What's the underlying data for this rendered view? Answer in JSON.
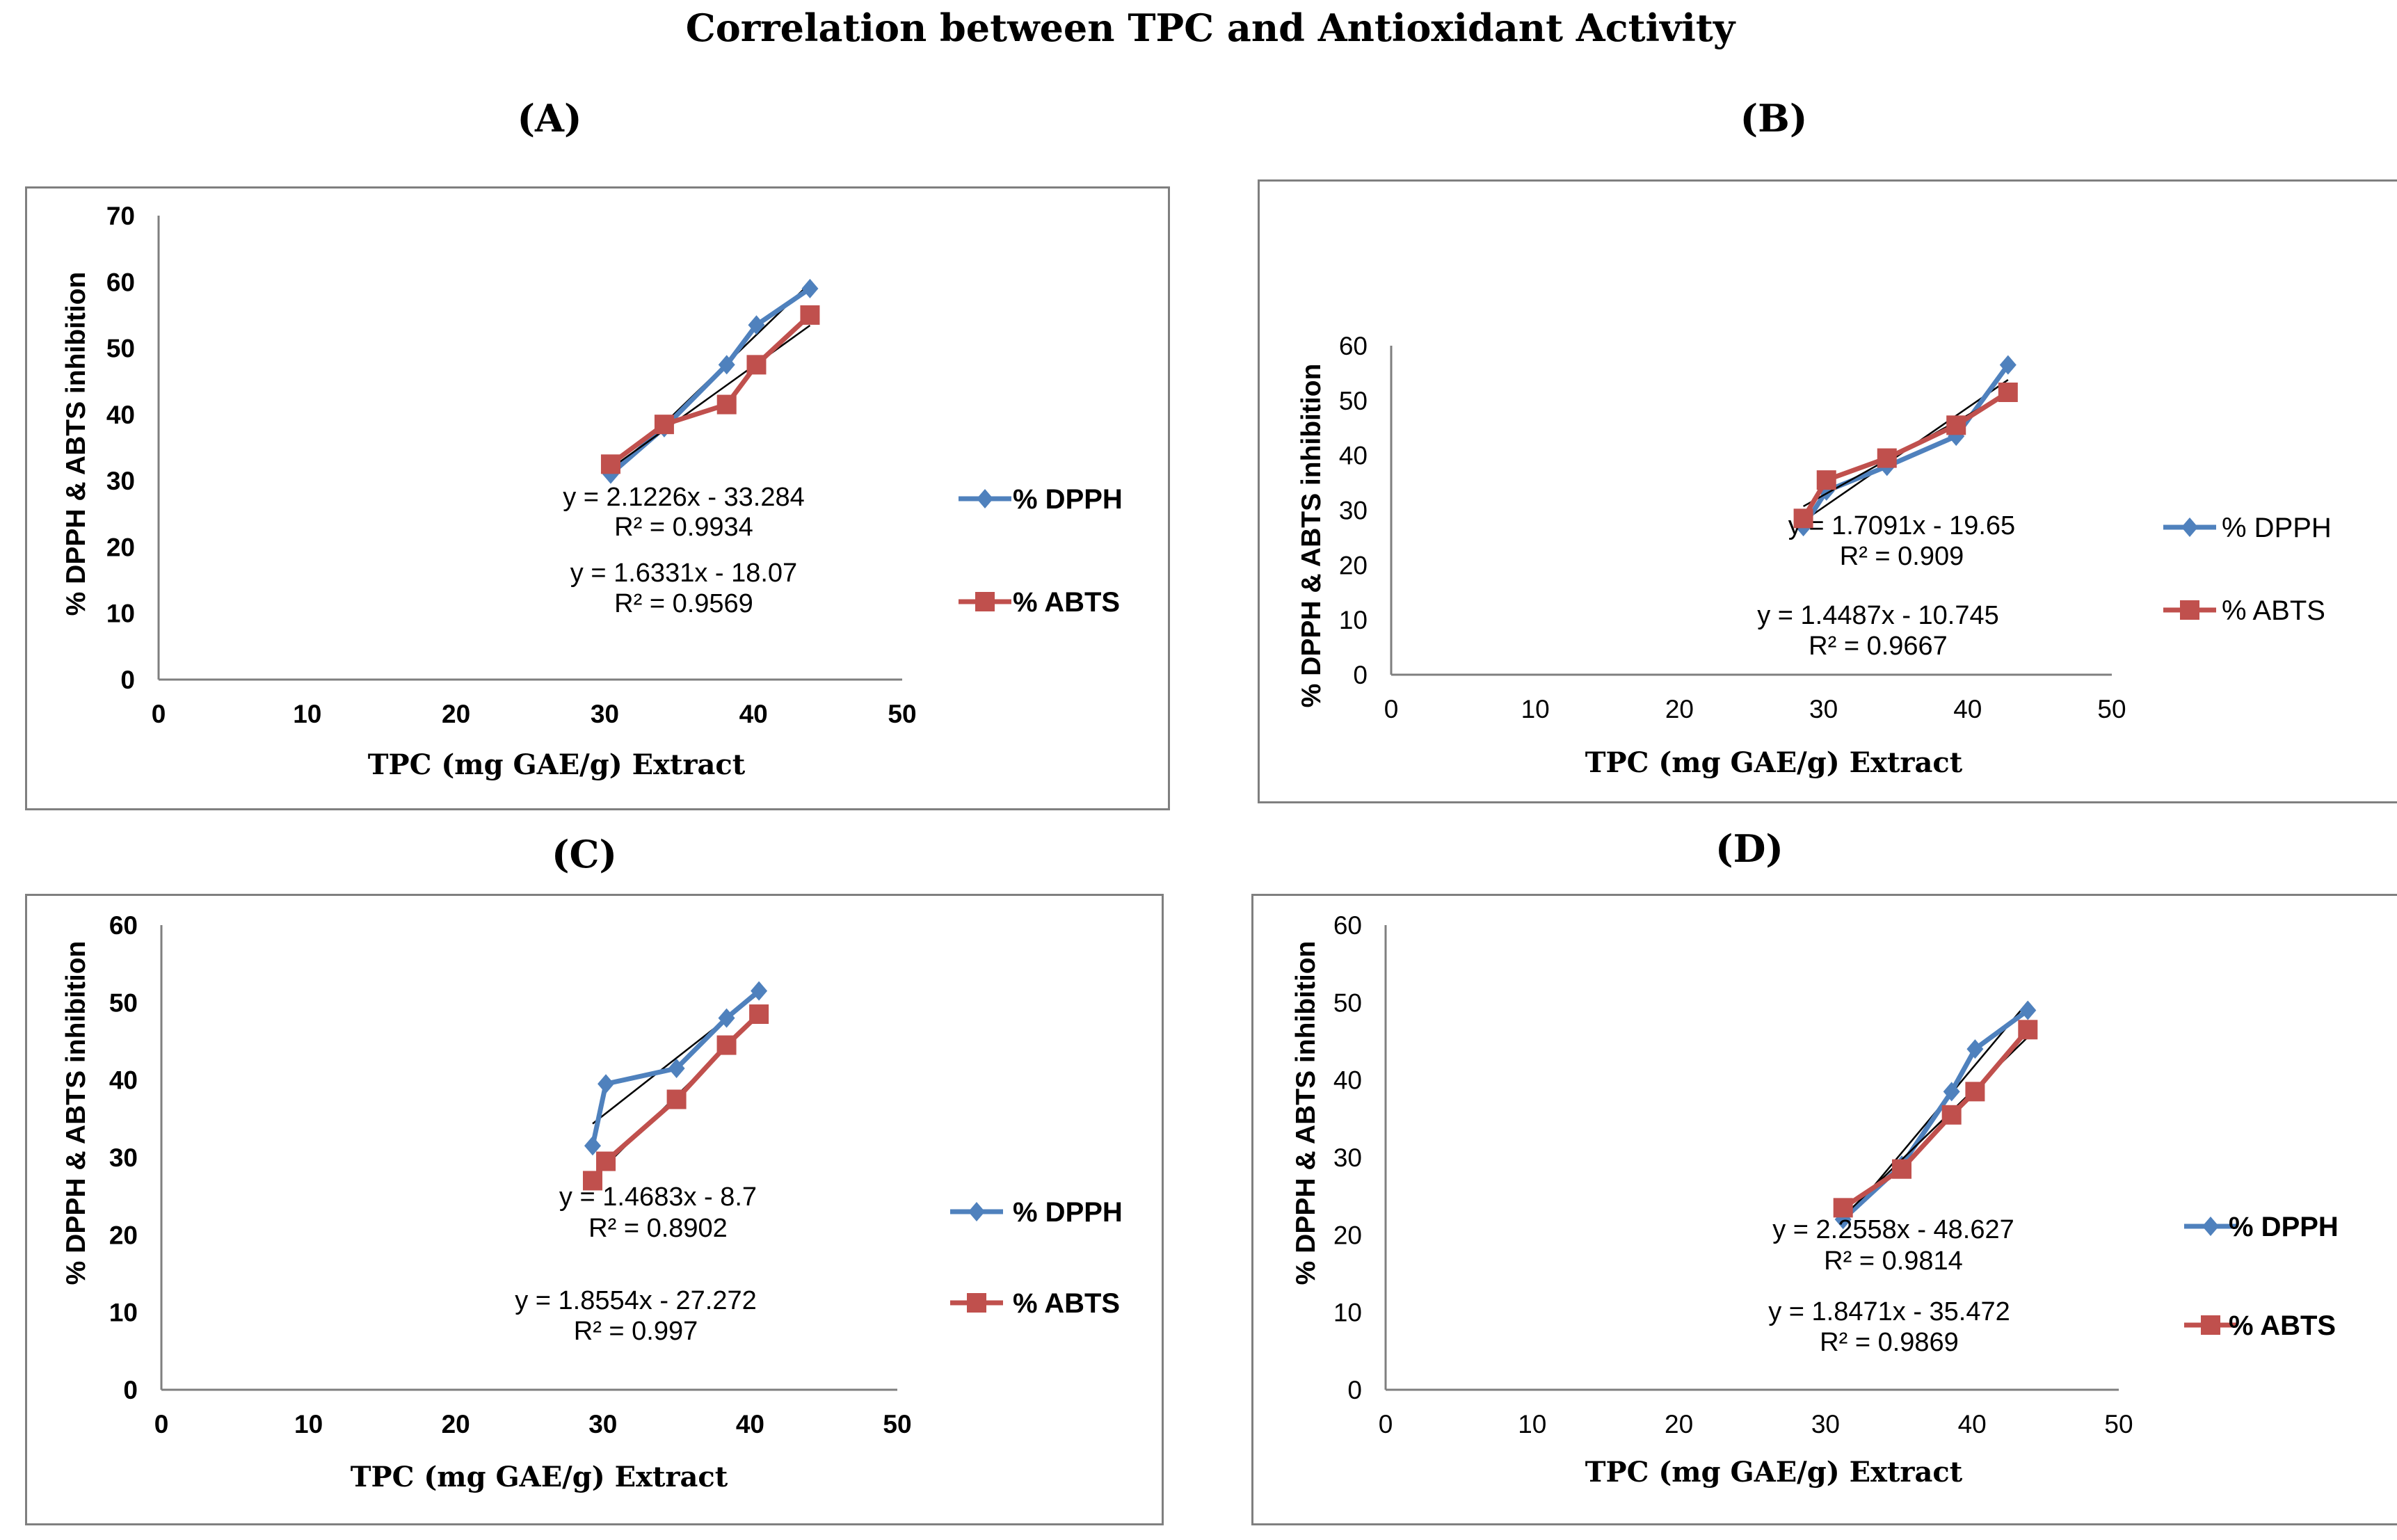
{
  "figure_title": "Correlation between TPC and Antioxidant Activity",
  "colors": {
    "dpph": "#4f81bd",
    "abts": "#c0504d",
    "trend": "#000000",
    "axis": "#7f7f7f"
  },
  "chart_data": [
    {
      "panel": "(A)",
      "type": "line",
      "xlabel": "TPC (mg GAE/g) Extract",
      "ylabel": "% DPPH & ABTS inhibition",
      "xlim": [
        0,
        50
      ],
      "ylim": [
        0,
        70
      ],
      "xticks": [
        "0",
        "10",
        "20",
        "30",
        "40",
        "50"
      ],
      "yticks": [
        "0",
        "10",
        "20",
        "30",
        "40",
        "50",
        "60",
        "70"
      ],
      "series": [
        {
          "name": "% DPPH",
          "x": [
            30.4,
            34.0,
            38.2,
            40.2,
            43.8
          ],
          "y": [
            31,
            38,
            47.5,
            53.5,
            59
          ],
          "trendline": {
            "equation": "y = 2.1226x - 33.284",
            "r2": "R² = 0.9934"
          }
        },
        {
          "name": "% ABTS",
          "x": [
            30.4,
            34.0,
            38.2,
            40.2,
            43.8
          ],
          "y": [
            32.5,
            38.5,
            41.5,
            47.5,
            55
          ],
          "trendline": {
            "equation": "y = 1.6331x - 18.07",
            "r2": "R² = 0.9569"
          }
        }
      ]
    },
    {
      "panel": "(B)",
      "type": "line",
      "xlabel": "TPC (mg GAE/g) Extract",
      "ylabel": "% DPPH & ABTS inhibition",
      "xlim": [
        0,
        50
      ],
      "ylim": [
        0,
        60
      ],
      "xticks": [
        "0",
        "10",
        "20",
        "30",
        "40",
        "50"
      ],
      "yticks": [
        "0",
        "10",
        "20",
        "30",
        "40",
        "50",
        "60"
      ],
      "series": [
        {
          "name": "% DPPH",
          "x": [
            28.6,
            30.2,
            34.4,
            39.2,
            42.8
          ],
          "y": [
            27,
            33.5,
            38,
            43.5,
            56.5
          ],
          "trendline": {
            "equation": "y = 1.7091x - 19.65",
            "r2": "R² = 0.909"
          }
        },
        {
          "name": "% ABTS",
          "x": [
            28.6,
            30.2,
            34.4,
            39.2,
            42.8
          ],
          "y": [
            28.5,
            35.5,
            39.5,
            45.5,
            51.5
          ],
          "trendline": {
            "equation": "y = 1.4487x - 10.745",
            "r2": "R² = 0.9667"
          }
        }
      ]
    },
    {
      "panel": "(C)",
      "type": "line",
      "xlabel": "TPC (mg GAE/g) Extract",
      "ylabel": "% DPPH & ABTS inhibition",
      "xlim": [
        0,
        50
      ],
      "ylim": [
        0,
        60
      ],
      "xticks": [
        "0",
        "10",
        "20",
        "30",
        "40",
        "50"
      ],
      "yticks": [
        "0",
        "10",
        "20",
        "30",
        "40",
        "50",
        "60"
      ],
      "series": [
        {
          "name": "% DPPH",
          "x": [
            29.3,
            30.2,
            35.0,
            38.4,
            40.6
          ],
          "y": [
            31.5,
            39.5,
            41.5,
            48,
            51.5
          ],
          "trendline": {
            "equation": "y = 1.4683x - 8.7",
            "r2": "R² = 0.8902"
          }
        },
        {
          "name": "% ABTS",
          "x": [
            29.3,
            30.2,
            35.0,
            38.4,
            40.6
          ],
          "y": [
            27,
            29.5,
            37.5,
            44.5,
            48.5
          ],
          "trendline": {
            "equation": "y = 1.8554x - 27.272",
            "r2": "R² = 0.997"
          }
        }
      ]
    },
    {
      "panel": "(D)",
      "type": "line",
      "xlabel": "TPC (mg GAE/g) Extract",
      "ylabel": "% DPPH & ABTS inhibition",
      "xlim": [
        0,
        50
      ],
      "ylim": [
        0,
        60
      ],
      "xticks": [
        "0",
        "10",
        "20",
        "30",
        "40",
        "50"
      ],
      "yticks": [
        "0",
        "10",
        "20",
        "30",
        "40",
        "50",
        "60"
      ],
      "series": [
        {
          "name": "% DPPH",
          "x": [
            31.2,
            35.2,
            38.6,
            40.2,
            43.8
          ],
          "y": [
            22,
            29,
            38.5,
            44,
            49
          ],
          "trendline": {
            "equation": "y = 2.2558x - 48.627",
            "r2": "R² = 0.9814"
          }
        },
        {
          "name": "% ABTS",
          "x": [
            31.2,
            35.2,
            38.6,
            40.2,
            43.8
          ],
          "y": [
            23.5,
            28.5,
            35.5,
            38.5,
            46.5
          ],
          "trendline": {
            "equation": "y = 1.8471x - 35.472",
            "r2": "R² = 0.9869"
          }
        }
      ]
    }
  ]
}
